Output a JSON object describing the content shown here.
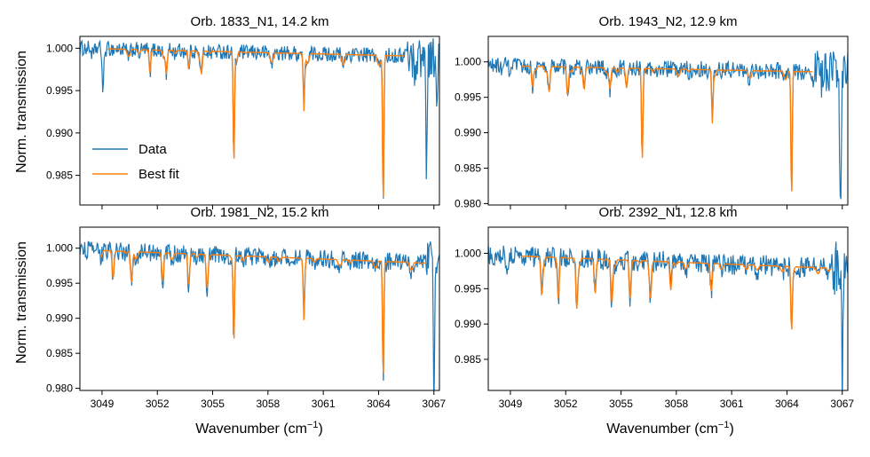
{
  "figure": {
    "xlabel": "Wavenumber (cm",
    "xlabel_sup": "−1",
    "xlabel_close": ")",
    "ylabel": "Norm. transmission",
    "colors": {
      "data": "#1f77b4",
      "fit": "#ff7f0e"
    }
  },
  "chart_data": [
    {
      "type": "line",
      "title": "Orb. 1833_N1,  14.2 km",
      "xlim": [
        3047.8,
        3067.3
      ],
      "ylim": [
        0.9815,
        1.0014
      ],
      "yticks": [
        0.985,
        0.99,
        0.995,
        1.0
      ],
      "ytick_labels": [
        "0.985",
        "0.990",
        "0.995",
        "1.000"
      ],
      "xticks": [
        3049,
        3052,
        3055,
        3058,
        3061,
        3064,
        3067
      ],
      "xtick_labels": [],
      "legend": {
        "position": "lower-left",
        "entries": [
          "Data",
          "Best fit"
        ]
      },
      "fit_range": [
        3049.3,
        3065.4
      ],
      "noise": 0.0009,
      "tail_noise": 0.0025,
      "baseline": [
        1.0,
        0.999
      ],
      "features": [
        {
          "x": 3056.15,
          "depth": 0.0128,
          "width": 0.05
        },
        {
          "x": 3059.95,
          "depth": 0.0068,
          "width": 0.05
        },
        {
          "x": 3064.25,
          "depth": 0.0178,
          "width": 0.05
        },
        {
          "x": 3049.05,
          "depth": 0.0045,
          "width": 0.06
        },
        {
          "x": 3051.6,
          "depth": 0.0028,
          "width": 0.06
        },
        {
          "x": 3052.5,
          "depth": 0.0025,
          "width": 0.06
        },
        {
          "x": 3053.7,
          "depth": 0.0022,
          "width": 0.06
        },
        {
          "x": 3054.4,
          "depth": 0.002,
          "width": 0.06
        },
        {
          "x": 3066.6,
          "depth": 0.013,
          "width": 0.05
        },
        {
          "x": 3067.15,
          "depth": 0.007,
          "width": 0.05
        }
      ],
      "series": [
        {
          "name": "Data"
        },
        {
          "name": "Best fit"
        }
      ]
    },
    {
      "type": "line",
      "title": "Orb. 1943_N2,  12.9 km",
      "xlim": [
        3047.8,
        3067.3
      ],
      "ylim": [
        0.9798,
        1.0036
      ],
      "yticks": [
        0.98,
        0.985,
        0.99,
        0.995,
        1.0
      ],
      "ytick_labels": [
        "0.980",
        "0.985",
        "0.990",
        "0.995",
        "1.000"
      ],
      "xticks": [
        3049,
        3052,
        3055,
        3058,
        3061,
        3064,
        3067
      ],
      "xtick_labels": [],
      "fit_range": [
        3049.6,
        3065.4
      ],
      "noise": 0.0012,
      "tail_noise": 0.003,
      "baseline": [
        0.9995,
        0.9985
      ],
      "features": [
        {
          "x": 3056.15,
          "depth": 0.0125,
          "width": 0.05
        },
        {
          "x": 3059.95,
          "depth": 0.007,
          "width": 0.05
        },
        {
          "x": 3064.25,
          "depth": 0.018,
          "width": 0.05
        },
        {
          "x": 3050.2,
          "depth": 0.003,
          "width": 0.07
        },
        {
          "x": 3051.1,
          "depth": 0.0035,
          "width": 0.07
        },
        {
          "x": 3052.1,
          "depth": 0.004,
          "width": 0.07
        },
        {
          "x": 3053.0,
          "depth": 0.003,
          "width": 0.07
        },
        {
          "x": 3054.4,
          "depth": 0.003,
          "width": 0.07
        },
        {
          "x": 3055.3,
          "depth": 0.0028,
          "width": 0.07
        },
        {
          "x": 3066.9,
          "depth": 0.0185,
          "width": 0.06
        }
      ],
      "series": [
        {
          "name": "Data"
        },
        {
          "name": "Best fit"
        }
      ]
    },
    {
      "type": "line",
      "title": "Orb. 1981_N2,  15.2 km",
      "xlim": [
        3047.8,
        3067.3
      ],
      "ylim": [
        0.9797,
        1.003
      ],
      "yticks": [
        0.98,
        0.985,
        0.99,
        0.995,
        1.0
      ],
      "ytick_labels": [
        "0.980",
        "0.985",
        "0.990",
        "0.995",
        "1.000"
      ],
      "xticks": [
        3049,
        3052,
        3055,
        3058,
        3061,
        3064,
        3067
      ],
      "xtick_labels": [
        "3049",
        "3052",
        "3055",
        "3058",
        "3061",
        "3064",
        "3067"
      ],
      "fit_range": [
        3048.9,
        3066.6
      ],
      "noise": 0.0013,
      "tail_noise": 0.0035,
      "baseline": [
        0.9998,
        0.9978
      ],
      "features": [
        {
          "x": 3056.15,
          "depth": 0.0122,
          "width": 0.05
        },
        {
          "x": 3059.95,
          "depth": 0.008,
          "width": 0.05
        },
        {
          "x": 3064.25,
          "depth": 0.017,
          "width": 0.05
        },
        {
          "x": 3049.6,
          "depth": 0.004,
          "width": 0.07
        },
        {
          "x": 3050.6,
          "depth": 0.0045,
          "width": 0.07
        },
        {
          "x": 3052.3,
          "depth": 0.004,
          "width": 0.07
        },
        {
          "x": 3053.7,
          "depth": 0.0045,
          "width": 0.07
        },
        {
          "x": 3054.7,
          "depth": 0.004,
          "width": 0.07
        },
        {
          "x": 3067.0,
          "depth": 0.018,
          "width": 0.05
        }
      ],
      "series": [
        {
          "name": "Data"
        },
        {
          "name": "Best fit"
        }
      ]
    },
    {
      "type": "line",
      "title": "Orb. 2392_N1,  12.8 km",
      "xlim": [
        3047.8,
        3067.3
      ],
      "ylim": [
        0.9806,
        1.0037
      ],
      "yticks": [
        0.985,
        0.99,
        0.995,
        1.0
      ],
      "ytick_labels": [
        "0.985",
        "0.990",
        "0.995",
        "1.000"
      ],
      "xticks": [
        3049,
        3052,
        3055,
        3058,
        3061,
        3064,
        3067
      ],
      "xtick_labels": [
        "3049",
        "3052",
        "3055",
        "3058",
        "3061",
        "3064",
        "3067"
      ],
      "fit_range": [
        3049.6,
        3066.4
      ],
      "noise": 0.0015,
      "tail_noise": 0.004,
      "baseline": [
        0.9998,
        0.9978
      ],
      "features": [
        {
          "x": 3064.25,
          "depth": 0.0088,
          "width": 0.06
        },
        {
          "x": 3050.7,
          "depth": 0.0045,
          "width": 0.07
        },
        {
          "x": 3051.6,
          "depth": 0.006,
          "width": 0.07
        },
        {
          "x": 3052.6,
          "depth": 0.0065,
          "width": 0.07
        },
        {
          "x": 3053.6,
          "depth": 0.005,
          "width": 0.07
        },
        {
          "x": 3054.5,
          "depth": 0.006,
          "width": 0.07
        },
        {
          "x": 3055.5,
          "depth": 0.0055,
          "width": 0.07
        },
        {
          "x": 3056.6,
          "depth": 0.0045,
          "width": 0.07
        },
        {
          "x": 3057.7,
          "depth": 0.004,
          "width": 0.07
        },
        {
          "x": 3059.9,
          "depth": 0.0035,
          "width": 0.07
        },
        {
          "x": 3067.0,
          "depth": 0.016,
          "width": 0.05
        }
      ],
      "series": [
        {
          "name": "Data"
        },
        {
          "name": "Best fit"
        }
      ]
    }
  ]
}
